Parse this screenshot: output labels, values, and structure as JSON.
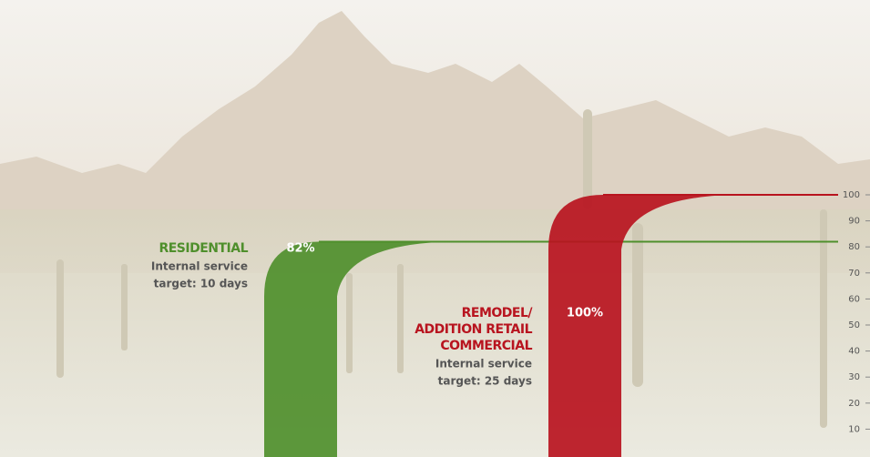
{
  "chart_data": {
    "type": "bar",
    "categories": [
      [
        "RESIDENTIAL"
      ],
      [
        "REMODEL/",
        "ADDITION RETAIL",
        "COMMERCIAL"
      ]
    ],
    "subtitles": [
      [
        "Internal service",
        "target: 10 days"
      ],
      [
        "Internal service",
        "target: 25 days"
      ]
    ],
    "values": [
      82,
      100
    ],
    "value_labels": [
      "82%",
      "100%"
    ],
    "colors": [
      "#4f8f2c",
      "#b8141f"
    ],
    "ylim": [
      0,
      100
    ],
    "yticks": [
      10,
      20,
      30,
      40,
      50,
      60,
      70,
      80,
      90,
      100
    ]
  }
}
